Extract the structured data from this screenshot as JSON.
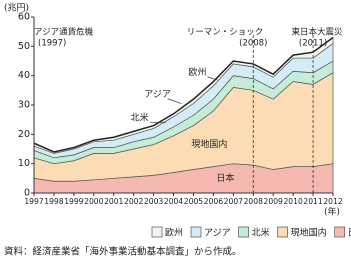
{
  "chart_data": {
    "type": "stacked_area",
    "y_unit": "(兆円)",
    "x_unit": "(年)",
    "x": [
      1997,
      1998,
      1999,
      2000,
      2001,
      2002,
      2003,
      2004,
      2005,
      2006,
      2007,
      2008,
      2009,
      2010,
      2011,
      2012
    ],
    "xlim": [
      1997,
      2012
    ],
    "xticks": [
      1997,
      1998,
      1999,
      2000,
      2001,
      2002,
      2003,
      2004,
      2005,
      2006,
      2007,
      2008,
      2009,
      2010,
      2011,
      2012
    ],
    "ylim": [
      0,
      60
    ],
    "yticks": [
      0,
      10,
      20,
      30,
      40,
      50,
      60
    ],
    "series": [
      {
        "name": "日本",
        "color": "#f5b9b2",
        "values": [
          5,
          4,
          4,
          4.5,
          5,
          5.5,
          6,
          7,
          8,
          9,
          10,
          9.5,
          8,
          9,
          9,
          10
        ]
      },
      {
        "name": "現地国内",
        "color": "#fcdcb4",
        "values": [
          7,
          6,
          7,
          9,
          8.5,
          9.5,
          10.5,
          12.5,
          15,
          19,
          26,
          25.5,
          24,
          29,
          28,
          31
        ]
      },
      {
        "name": "北米",
        "color": "#c6ebd6",
        "values": [
          2.5,
          2,
          2,
          2,
          2,
          2.5,
          2.5,
          3,
          3.5,
          4,
          4,
          4,
          3.5,
          3.5,
          4,
          4
        ]
      },
      {
        "name": "アジア",
        "color": "#d3ecf6",
        "values": [
          1.5,
          1.5,
          2,
          2,
          2.5,
          2.5,
          3,
          3.5,
          4,
          4.5,
          4,
          4,
          4,
          4.5,
          5,
          6
        ]
      },
      {
        "name": "欧州",
        "color": "#f3f3ef",
        "values": [
          1,
          0.5,
          0.5,
          0.5,
          1,
          1,
          1,
          1,
          1.5,
          1.5,
          1,
          1,
          1,
          1,
          2,
          2
        ]
      }
    ],
    "events": [
      {
        "text": "アジア通貨危機",
        "sub": "(1997)",
        "x": 1997,
        "line": false
      },
      {
        "text": "リーマン・ショック",
        "sub": "(2008)",
        "x": 2008,
        "line": true
      },
      {
        "text": "東日本大震災",
        "sub": "(2011)",
        "x": 2011,
        "line": true
      }
    ],
    "source": "資料：経済産業省「海外事業活動基本調査」から作成。"
  }
}
